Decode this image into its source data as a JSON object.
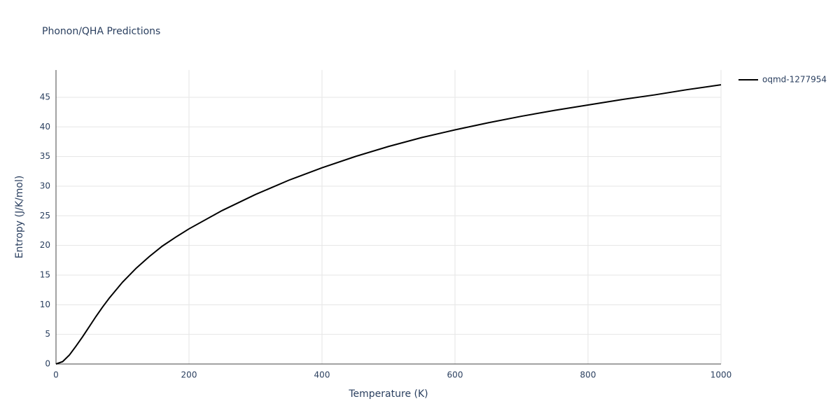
{
  "chart_data": {
    "type": "line",
    "title": "Phonon/QHA Predictions",
    "x_label": "Temperature (K)",
    "y_label": "Entropy (J/K/mol)",
    "x": [
      0,
      10,
      20,
      30,
      40,
      50,
      60,
      70,
      80,
      100,
      120,
      140,
      160,
      180,
      200,
      250,
      300,
      350,
      400,
      450,
      500,
      550,
      600,
      650,
      700,
      750,
      800,
      850,
      900,
      950,
      1000
    ],
    "series": [
      {
        "name": "oqmd-1277954",
        "color": "#000000",
        "values": [
          0,
          0.4,
          1.5,
          3,
          4.6,
          6.3,
          8,
          9.6,
          11.1,
          13.8,
          16.1,
          18.1,
          19.9,
          21.4,
          22.8,
          25.9,
          28.6,
          31.0,
          33.1,
          35.0,
          36.7,
          38.2,
          39.5,
          40.7,
          41.8,
          42.8,
          43.7,
          44.6,
          45.4,
          46.3,
          47.1
        ]
      }
    ],
    "xlim": [
      0,
      1000
    ],
    "ylim": [
      0,
      49.6
    ],
    "xticks": [
      0,
      200,
      400,
      600,
      800,
      1000
    ],
    "yticks": [
      0,
      5,
      10,
      15,
      20,
      25,
      30,
      35,
      40,
      45
    ],
    "grid": true,
    "legend": "right"
  }
}
